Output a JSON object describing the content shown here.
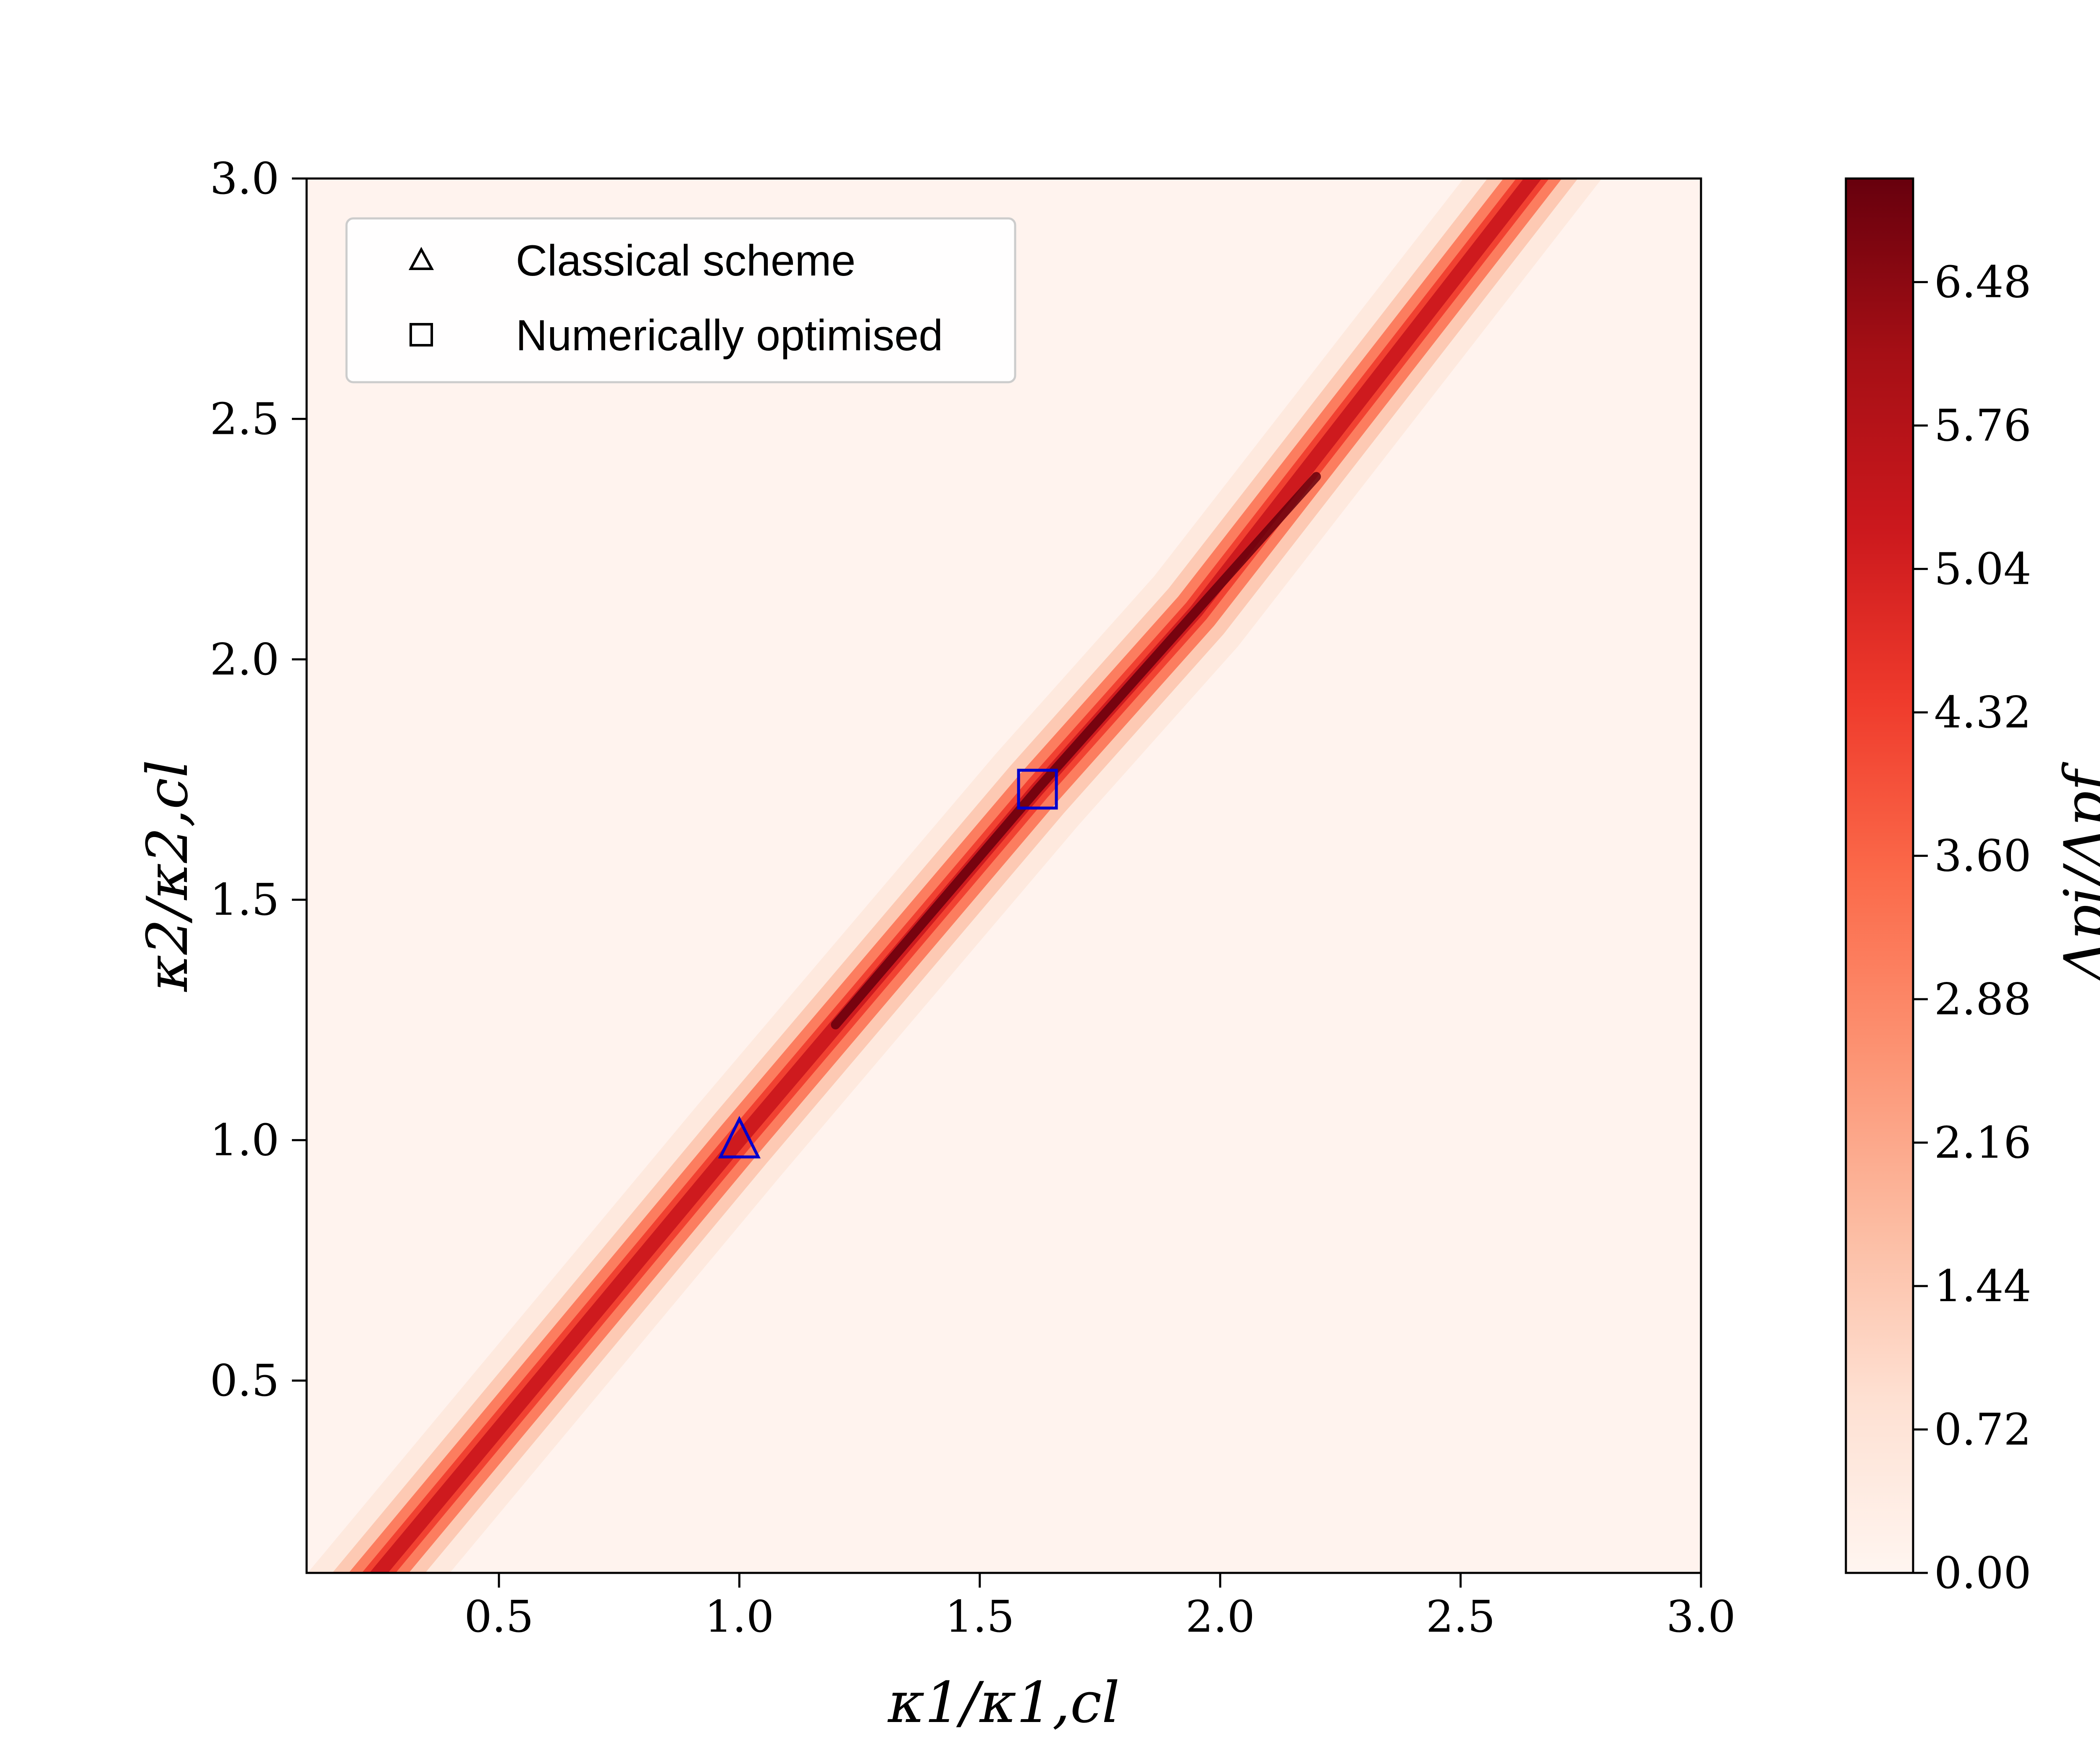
{
  "chart_data": {
    "type": "heatmap",
    "title": "",
    "xlabel": "κ1/κ1,cl",
    "ylabel": "κ2/κ2,cl",
    "xlim": [
      0.1,
      3.0
    ],
    "ylim": [
      0.1,
      3.0
    ],
    "x_ticks": [
      "0.5",
      "1.0",
      "1.5",
      "2.0",
      "2.5",
      "3.0"
    ],
    "y_ticks": [
      "0.5",
      "1.0",
      "1.5",
      "2.0",
      "2.5",
      "3.0"
    ],
    "colorbar": {
      "label": "Δpi/Δpf",
      "min": 0.0,
      "max": 7.0,
      "ticks": [
        "0.00",
        "0.72",
        "1.44",
        "2.16",
        "2.88",
        "3.60",
        "4.32",
        "5.04",
        "5.76",
        "6.48"
      ],
      "colormap": "Reds"
    },
    "ridge": {
      "description": "maximum along line",
      "points": [
        [
          0.25,
          0.1
        ],
        [
          1.0,
          1.0
        ],
        [
          1.62,
          1.73
        ],
        [
          1.95,
          2.1
        ],
        [
          2.65,
          3.0
        ]
      ],
      "peak_value": 7.0,
      "peak_location": [
        1.85,
        2.0
      ]
    },
    "markers": [
      {
        "name": "Classical scheme",
        "shape": "triangle",
        "x": 1.0,
        "y": 1.0,
        "color": "#0000cc"
      },
      {
        "name": "Numerically optimised",
        "shape": "square",
        "x": 1.62,
        "y": 1.73,
        "color": "#0000cc"
      }
    ],
    "legend": {
      "placement": "top-left",
      "entries": [
        "Classical scheme",
        "Numerically optimised"
      ]
    },
    "grid": false
  }
}
